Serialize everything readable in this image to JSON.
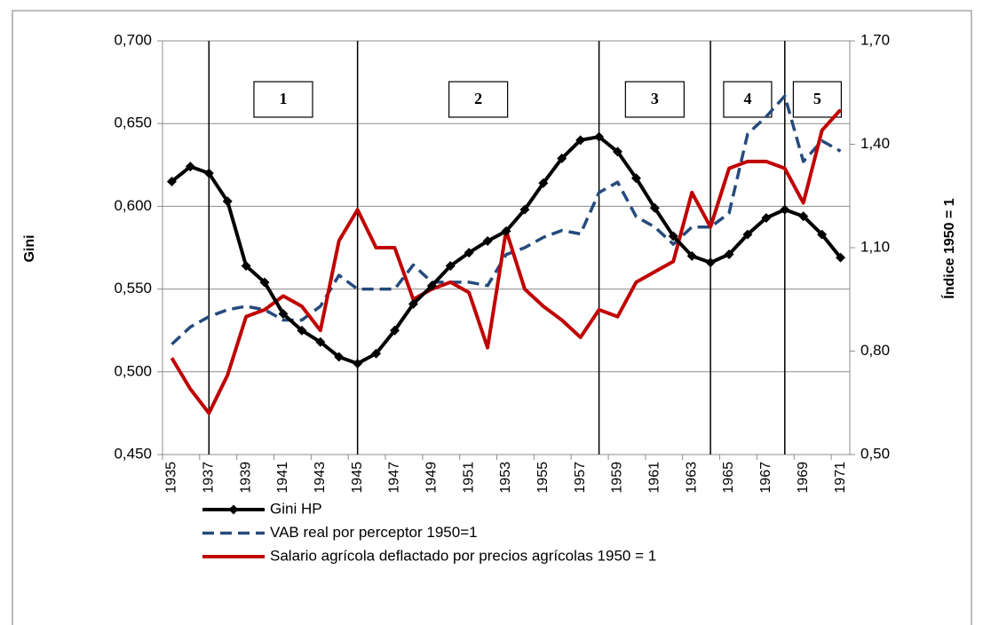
{
  "chart_data": {
    "type": "line",
    "ylabel": "Gini",
    "y2label": "Índice 1950 = 1",
    "categories": [
      "1935",
      "1936",
      "1937",
      "1938",
      "1939",
      "1940",
      "1941",
      "1942",
      "1943",
      "1944",
      "1945",
      "1946",
      "1947",
      "1948",
      "1949",
      "1950",
      "1951",
      "1952",
      "1953",
      "1954",
      "1955",
      "1956",
      "1957",
      "1958",
      "1959",
      "1960",
      "1961",
      "1962",
      "1963",
      "1964",
      "1965",
      "1966",
      "1967",
      "1968",
      "1969",
      "1970",
      "1971"
    ],
    "xticks": [
      "1935",
      "1937",
      "1939",
      "1941",
      "1943",
      "1945",
      "1947",
      "1949",
      "1951",
      "1953",
      "1955",
      "1957",
      "1959",
      "1961",
      "1963",
      "1965",
      "1967",
      "1969",
      "1971"
    ],
    "ylim": [
      0.45,
      0.7
    ],
    "yticks": [
      {
        "value": 0.45,
        "label": "0,450"
      },
      {
        "value": 0.5,
        "label": "0,500"
      },
      {
        "value": 0.55,
        "label": "0,550"
      },
      {
        "value": 0.6,
        "label": "0,600"
      },
      {
        "value": 0.65,
        "label": "0,650"
      },
      {
        "value": 0.7,
        "label": "0,700"
      }
    ],
    "y2lim": [
      0.5,
      1.7
    ],
    "y2ticks": [
      {
        "value": 0.5,
        "label": "0,50"
      },
      {
        "value": 0.8,
        "label": "0,80"
      },
      {
        "value": 1.1,
        "label": "1,10"
      },
      {
        "value": 1.4,
        "label": "1,40"
      },
      {
        "value": 1.7,
        "label": "1,70"
      }
    ],
    "grid": true,
    "legend": "bottom",
    "period_starts": [
      "1937",
      "1945",
      "1958",
      "1964",
      "1968"
    ],
    "periods": [
      "1",
      "2",
      "3",
      "4",
      "5"
    ],
    "series": [
      {
        "name": "Gini HP",
        "color": "#000000",
        "marker": "diamond",
        "values": [
          0.615,
          0.624,
          0.62,
          0.603,
          0.564,
          0.554,
          0.535,
          0.525,
          0.518,
          0.509,
          0.505,
          0.511,
          0.525,
          0.541,
          0.552,
          0.564,
          0.572,
          0.579,
          0.585,
          0.598,
          0.614,
          0.629,
          0.64,
          0.642,
          0.633,
          0.617,
          0.599,
          0.582,
          0.57,
          0.566,
          0.571,
          0.583,
          0.593,
          0.598,
          0.594,
          0.583,
          0.569
        ]
      },
      {
        "name": "VAB real por perceptor 1950=1",
        "color": "#254a7c",
        "dashed": true,
        "axis": "y2",
        "values": [
          0.82,
          0.87,
          0.9,
          0.92,
          0.93,
          0.92,
          0.89,
          0.89,
          0.93,
          1.02,
          0.98,
          0.98,
          0.98,
          1.05,
          1.0,
          1.0,
          1.0,
          0.99,
          1.08,
          1.1,
          1.13,
          1.15,
          1.14,
          1.26,
          1.29,
          1.19,
          1.16,
          1.11,
          1.16,
          1.16,
          1.2,
          1.43,
          1.48,
          1.54,
          1.35,
          1.41,
          1.38
        ]
      },
      {
        "name": "Salario agrícola deflactado por precios agrícolas 1950 = 1",
        "color": "#c00000",
        "axis": "y2",
        "values": [
          0.78,
          0.69,
          0.62,
          0.73,
          0.9,
          0.92,
          0.96,
          0.93,
          0.86,
          1.12,
          1.21,
          1.1,
          1.1,
          0.95,
          0.98,
          1.0,
          0.97,
          0.81,
          1.15,
          0.98,
          0.93,
          0.89,
          0.84,
          0.92,
          0.9,
          1.0,
          1.03,
          1.06,
          1.26,
          1.16,
          1.33,
          1.35,
          1.35,
          1.33,
          1.23,
          1.44,
          1.5
        ]
      }
    ]
  }
}
